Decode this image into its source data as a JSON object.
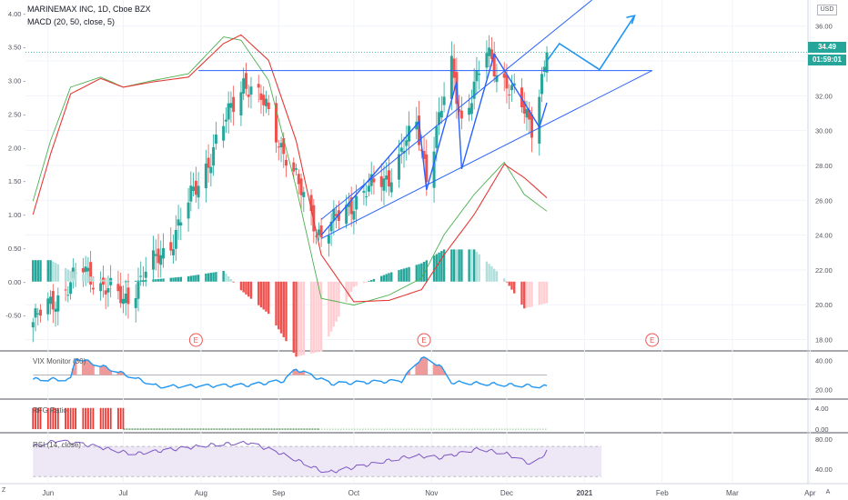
{
  "header": {
    "symbol": "MARINEMAX INC, 1D, Cboe BZX",
    "indicator": "MACD (20, 50, close, 5)",
    "currency": "USD",
    "price_badge": "34.49",
    "countdown_badge": "01:59:01",
    "price_badge_color": "#26a69a"
  },
  "panes": {
    "vix_label": "VIX Monitor (30)",
    "rfg_label": "RFG Ratio",
    "rsi_label": "RSI (14, close)"
  },
  "corner": {
    "left": "Z",
    "right": "A"
  },
  "colors": {
    "up": "#26a69a",
    "down": "#ef5350",
    "macd": "#4caf50",
    "signal": "#e53935",
    "drawing": "#2962ff",
    "vix": "#2196f3",
    "rsi": "#7e57c2"
  },
  "chart_data": [
    {
      "type": "candlestick",
      "title": "MARINEMAX INC, 1D, Cboe BZX",
      "x_tick_labels": [
        "Jun",
        "Jul",
        "Aug",
        "Sep",
        "Oct",
        "Nov",
        "Dec",
        "2021",
        "Feb",
        "Mar",
        "Apr"
      ],
      "price_axis_ticks": [
        18.0,
        20.0,
        22.0,
        24.0,
        26.0,
        28.0,
        30.0,
        32.0,
        34.0,
        36.0
      ],
      "price_ylim": [
        17.4,
        37.5
      ],
      "last_price": 34.49,
      "trend_anchors": {
        "dates": [
          "2020-05-26",
          "2020-06-15",
          "2020-07-01",
          "2020-07-20",
          "2020-08-05",
          "2020-08-18",
          "2020-08-27",
          "2020-09-10",
          "2020-09-18",
          "2020-10-01",
          "2020-10-15",
          "2020-10-26",
          "2020-10-30",
          "2020-11-09",
          "2020-11-13",
          "2020-11-23",
          "2020-12-02",
          "2020-12-11",
          "2020-12-17"
        ],
        "closes": [
          19.0,
          22.0,
          20.2,
          23.6,
          28.6,
          32.9,
          31.3,
          26.4,
          23.9,
          26.0,
          27.4,
          30.3,
          27.6,
          33.6,
          30.6,
          34.4,
          32.5,
          30.3,
          34.49
        ]
      },
      "annotations": {
        "earnings_marks": [
          {
            "date": "2020-07-30",
            "label": "E"
          },
          {
            "date": "2020-10-29",
            "label": "E"
          },
          {
            "date": "2021-01-28",
            "label": "E"
          }
        ],
        "horizontal_level": 33.45,
        "rising_channel": {
          "lower": [
            [
              "2020-09-18",
              23.8
            ],
            [
              "2021-01-28",
              33.45
            ]
          ],
          "upper": [
            [
              "2020-09-18",
              24.9
            ],
            [
              "2021-01-04",
              37.5
            ]
          ]
        },
        "projection_path": [
          [
            "2020-12-17",
            34.0
          ],
          [
            "2020-12-22",
            35.0
          ],
          [
            "2021-01-07",
            33.5
          ],
          [
            "2021-01-21",
            36.6
          ]
        ],
        "zigzag": [
          [
            "2020-09-18",
            24.0
          ],
          [
            "2020-10-27",
            30.5
          ],
          [
            "2020-10-30",
            26.6
          ],
          [
            "2020-11-11",
            32.8
          ],
          [
            "2020-11-13",
            27.8
          ],
          [
            "2020-11-26",
            34.4
          ],
          [
            "2020-12-14",
            30.2
          ],
          [
            "2020-12-17",
            31.6
          ]
        ]
      },
      "macd": {
        "axis_ticks": [
          -0.5,
          0.0,
          0.5,
          1.0,
          1.5,
          2.0,
          2.5,
          3.0,
          3.5,
          4.0
        ],
        "ylim": [
          -1.02,
          4.2
        ],
        "macd_anchors": {
          "dates": [
            "2020-05-26",
            "2020-06-02",
            "2020-06-10",
            "2020-06-22",
            "2020-07-01",
            "2020-07-13",
            "2020-07-27",
            "2020-08-10",
            "2020-08-17",
            "2020-08-28",
            "2020-09-08",
            "2020-09-18",
            "2020-10-01",
            "2020-10-15",
            "2020-10-28",
            "2020-11-06",
            "2020-11-18",
            "2020-11-30",
            "2020-12-08",
            "2020-12-17"
          ],
          "values": [
            1.2,
            2.1,
            2.9,
            3.05,
            2.9,
            3.0,
            3.1,
            3.65,
            3.6,
            3.0,
            1.4,
            -0.25,
            -0.35,
            -0.2,
            0.05,
            0.7,
            1.3,
            1.78,
            1.3,
            1.05
          ]
        },
        "signal_anchors": {
          "dates": [
            "2020-05-26",
            "2020-06-02",
            "2020-06-10",
            "2020-06-22",
            "2020-07-01",
            "2020-07-13",
            "2020-07-27",
            "2020-08-10",
            "2020-08-17",
            "2020-08-28",
            "2020-09-08",
            "2020-09-18",
            "2020-10-01",
            "2020-10-15",
            "2020-10-28",
            "2020-11-06",
            "2020-11-18",
            "2020-11-30",
            "2020-12-08",
            "2020-12-17"
          ],
          "values": [
            1.0,
            1.9,
            2.8,
            3.03,
            2.9,
            2.98,
            3.05,
            3.55,
            3.68,
            3.3,
            2.1,
            0.4,
            -0.3,
            -0.28,
            -0.12,
            0.4,
            1.0,
            1.75,
            1.55,
            1.25
          ]
        }
      }
    },
    {
      "type": "line",
      "title": "VIX Monitor (30)",
      "axis_ticks": [
        20.0,
        40.0
      ],
      "ylim": [
        14,
        46
      ],
      "threshold": 30,
      "anchors": {
        "dates": [
          "2020-05-26",
          "2020-06-10",
          "2020-06-12",
          "2020-06-26",
          "2020-07-15",
          "2020-08-20",
          "2020-09-03",
          "2020-09-08",
          "2020-09-22",
          "2020-10-20",
          "2020-10-28",
          "2020-11-04",
          "2020-11-09",
          "2020-12-17"
        ],
        "values": [
          27,
          27,
          42,
          34,
          22,
          23,
          26,
          34,
          24,
          26,
          42,
          37,
          25,
          22
        ]
      }
    },
    {
      "type": "bar",
      "title": "RFG Ratio",
      "axis_ticks": [
        0.0,
        4.0
      ],
      "ylim": [
        -0.5,
        5.5
      ],
      "value_until_july": 4.0,
      "value_after": 0.0
    },
    {
      "type": "line",
      "title": "RSI (14, close)",
      "axis_ticks": [
        40.0,
        80.0
      ],
      "ylim": [
        23,
        87
      ],
      "band": [
        30,
        70
      ],
      "anchors": {
        "dates": [
          "2020-05-26",
          "2020-06-05",
          "2020-06-20",
          "2020-07-05",
          "2020-08-05",
          "2020-08-20",
          "2020-09-01",
          "2020-09-20",
          "2020-10-10",
          "2020-10-25",
          "2020-11-05",
          "2020-11-20",
          "2020-12-01",
          "2020-12-12",
          "2020-12-17"
        ],
        "values": [
          70,
          78,
          70,
          60,
          72,
          75,
          62,
          35,
          48,
          58,
          55,
          67,
          60,
          45,
          64
        ]
      }
    }
  ]
}
